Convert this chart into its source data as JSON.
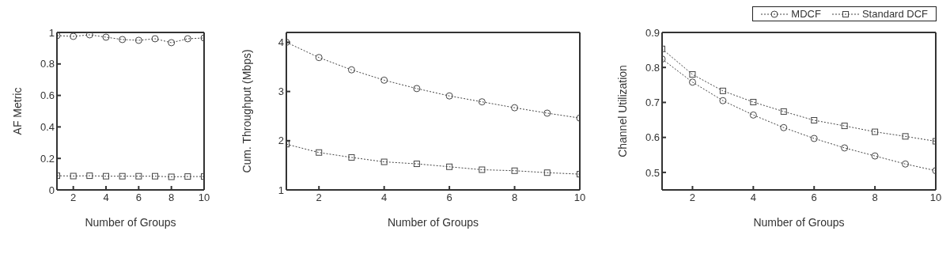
{
  "chart_data": [
    {
      "type": "line",
      "xlabel": "Number of Groups",
      "ylabel": "AF Metric",
      "x": [
        1,
        2,
        3,
        4,
        5,
        6,
        7,
        8,
        9,
        10
      ],
      "xlim": [
        1,
        10
      ],
      "xticks": [
        2,
        4,
        6,
        8,
        10
      ],
      "ylim": [
        0,
        1
      ],
      "yticks": [
        0,
        0.2,
        0.4,
        0.6,
        0.8,
        1
      ],
      "grid": false,
      "legend": false,
      "line_style": "dotted",
      "series": [
        {
          "color": "#444444",
          "marker": "circle",
          "values": [
            0.98,
            0.975,
            0.985,
            0.97,
            0.955,
            0.95,
            0.96,
            0.935,
            0.96,
            0.965
          ]
        },
        {
          "color": "#444444",
          "marker": "square",
          "values": [
            0.09,
            0.088,
            0.09,
            0.087,
            0.087,
            0.087,
            0.087,
            0.083,
            0.085,
            0.085
          ]
        }
      ]
    },
    {
      "type": "line",
      "xlabel": "Number of Groups",
      "ylabel": "Cum. Throughput (Mbps)",
      "x": [
        1,
        2,
        3,
        4,
        5,
        6,
        7,
        8,
        9,
        10
      ],
      "xlim": [
        1,
        10
      ],
      "xticks": [
        2,
        4,
        6,
        8,
        10
      ],
      "ylim": [
        1,
        4.2
      ],
      "yticks": [
        1,
        2,
        3,
        4
      ],
      "grid": false,
      "legend": false,
      "line_style": "dotted",
      "series": [
        {
          "color": "#444444",
          "marker": "circle",
          "values": [
            4.0,
            3.69,
            3.44,
            3.23,
            3.06,
            2.91,
            2.79,
            2.67,
            2.56,
            2.46
          ]
        },
        {
          "color": "#444444",
          "marker": "square",
          "values": [
            1.93,
            1.76,
            1.66,
            1.57,
            1.53,
            1.47,
            1.41,
            1.39,
            1.35,
            1.32
          ]
        }
      ]
    },
    {
      "type": "line",
      "xlabel": "Number of Groups",
      "ylabel": "Channel Utilization",
      "x": [
        1,
        2,
        3,
        4,
        5,
        6,
        7,
        8,
        9,
        10
      ],
      "xlim": [
        1,
        10
      ],
      "xticks": [
        2,
        4,
        6,
        8,
        10
      ],
      "ylim": [
        0.45,
        0.9
      ],
      "yticks": [
        0.5,
        0.6,
        0.7,
        0.8,
        0.9
      ],
      "grid": false,
      "legend": "top right",
      "line_style": "dotted",
      "series": [
        {
          "name": "MDCF",
          "color": "#444444",
          "marker": "circle",
          "values": [
            0.824,
            0.758,
            0.705,
            0.664,
            0.628,
            0.597,
            0.57,
            0.547,
            0.524,
            0.505
          ]
        },
        {
          "name": "Standard DCF",
          "color": "#444444",
          "marker": "square",
          "values": [
            0.853,
            0.78,
            0.733,
            0.701,
            0.674,
            0.649,
            0.633,
            0.616,
            0.603,
            0.589
          ]
        }
      ]
    }
  ]
}
